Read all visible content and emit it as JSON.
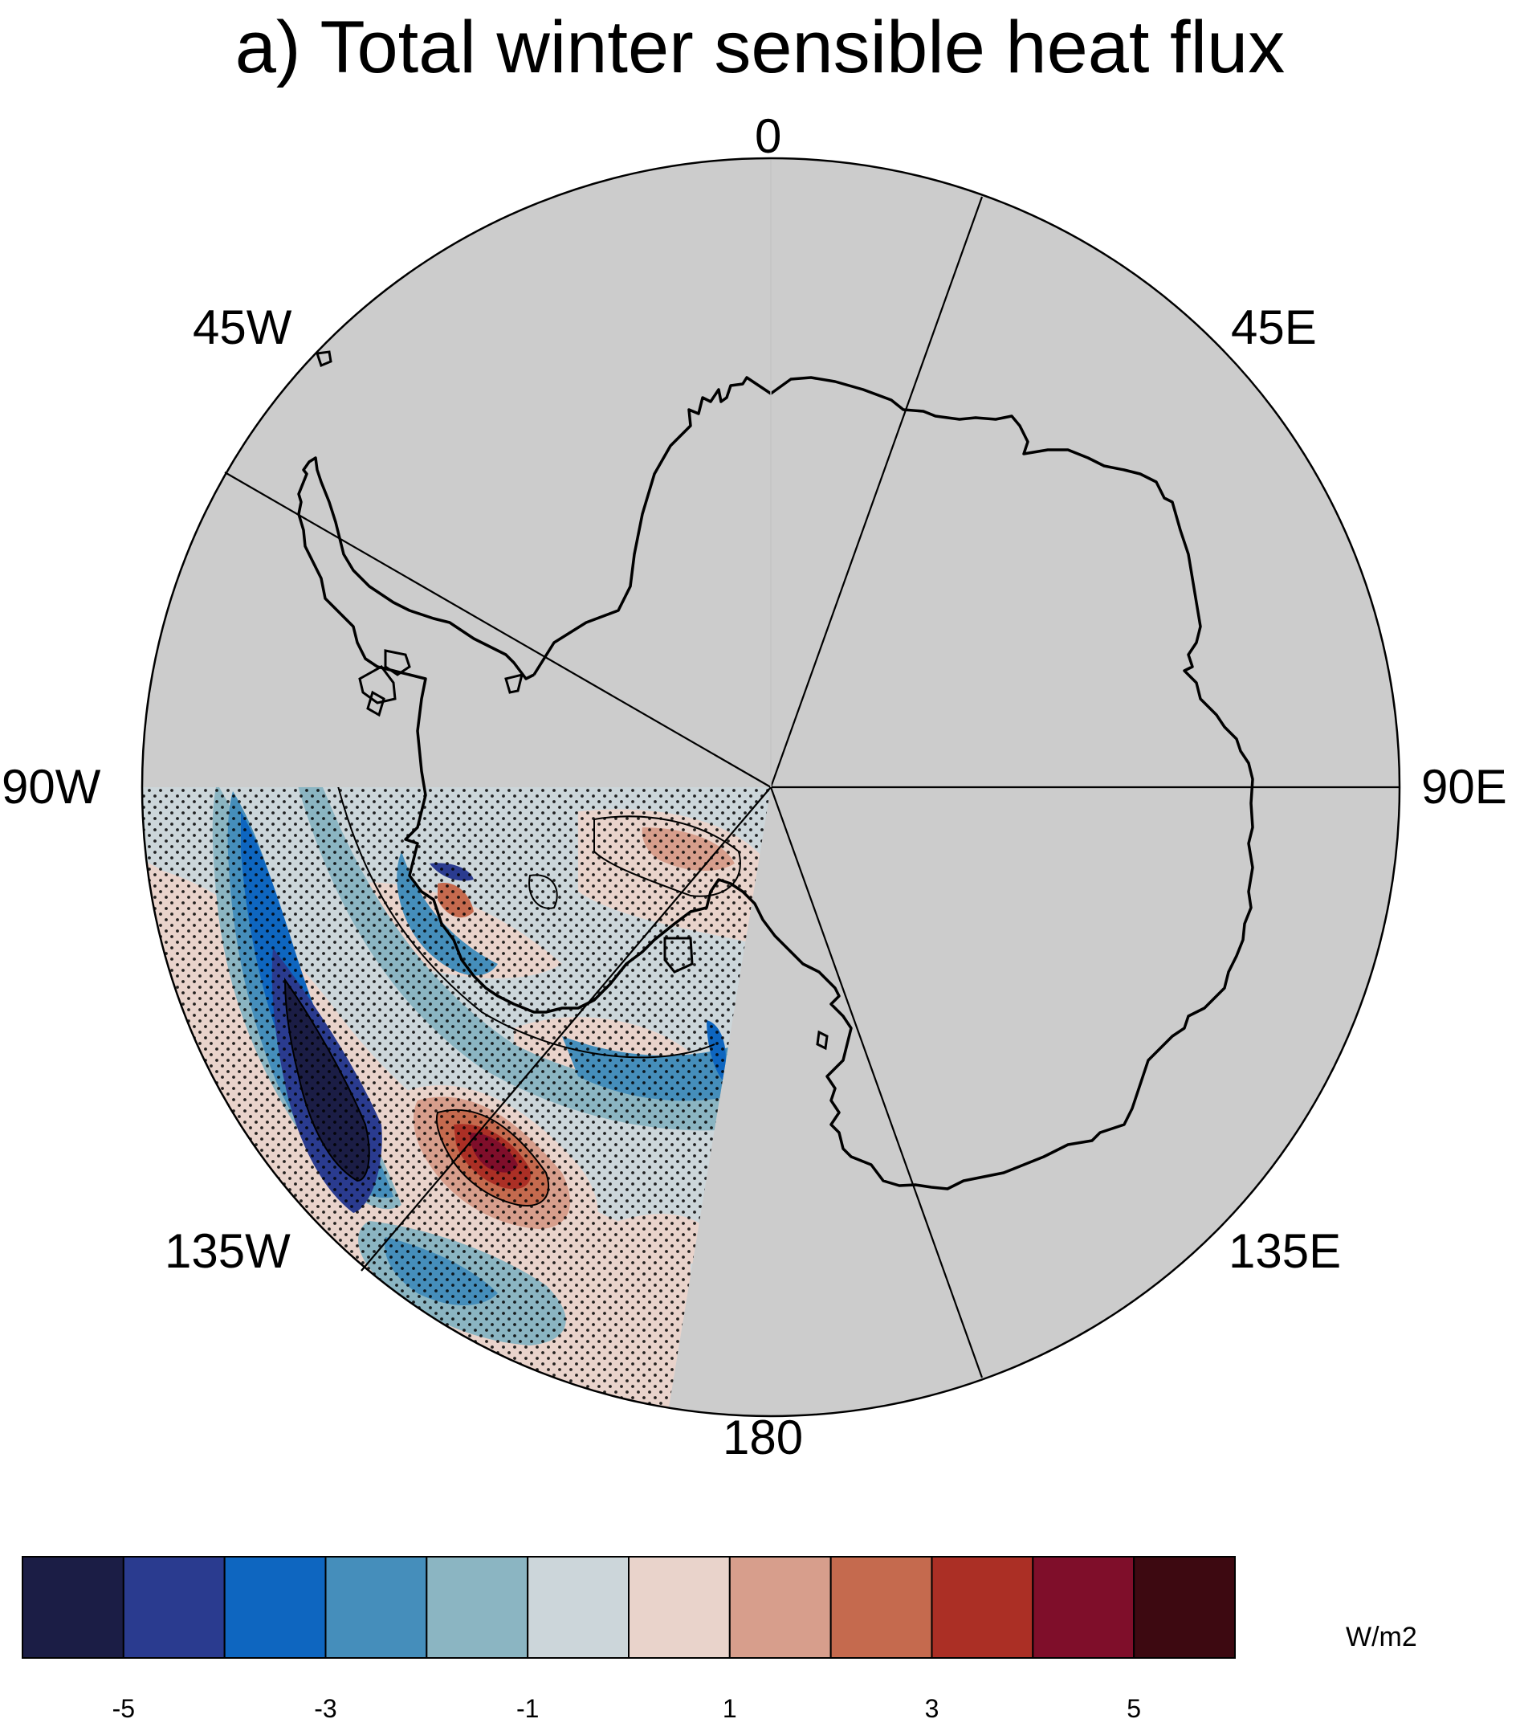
{
  "title": "a) Total winter sensible heat flux",
  "map": {
    "projection": "south-polar-stereographic",
    "land_color": "#cccccc",
    "stipple": "significance dots over data region",
    "longitude_labels": [
      "0",
      "45E",
      "90E",
      "135E",
      "180",
      "135W",
      "90W",
      "45W"
    ]
  },
  "colorbar": {
    "unit": "W/m2",
    "colors": [
      "#1b1d45",
      "#2a3b8f",
      "#0e66c0",
      "#458ebb",
      "#8bb5c2",
      "#ccd6da",
      "#e9d3cb",
      "#d79e8c",
      "#c56a4e",
      "#ab2f25",
      "#7f0e2a",
      "#3d0911"
    ],
    "tick_labels": [
      "-5",
      "-3",
      "-1",
      "1",
      "3",
      "5"
    ]
  }
}
